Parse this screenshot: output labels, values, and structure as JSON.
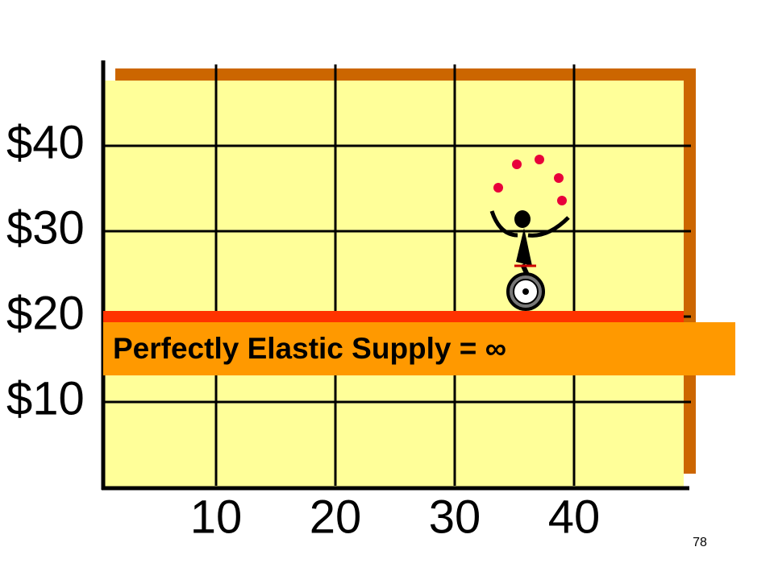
{
  "chart_data": {
    "type": "line",
    "x": [
      0,
      50
    ],
    "series": [
      {
        "color": "#ff3300",
        "values": [
          20,
          20
        ]
      }
    ],
    "xlim": [
      0,
      50
    ],
    "ylim": [
      0,
      50
    ],
    "xticks": [
      10,
      20,
      30,
      40
    ],
    "yticks": [
      {
        "value": 10,
        "label": "$10"
      },
      {
        "value": 20,
        "label": "$20"
      },
      {
        "value": 30,
        "label": "$30"
      },
      {
        "value": 40,
        "label": "$40"
      }
    ],
    "grid": true,
    "annotation": "Perfectly Elastic Supply = ∞",
    "page_number": "78"
  }
}
